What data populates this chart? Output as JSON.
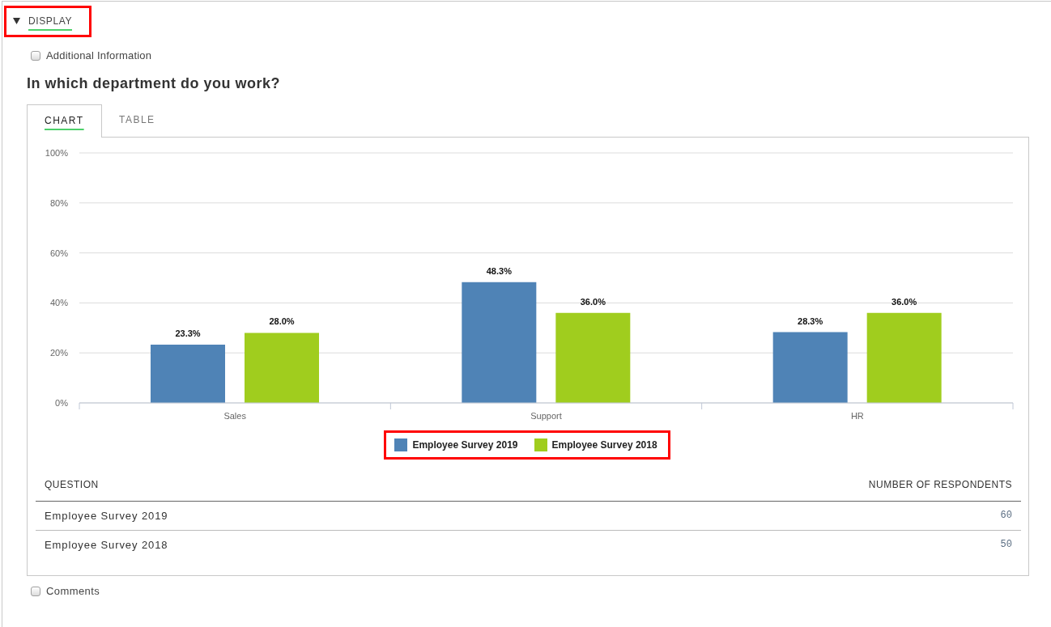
{
  "chart_data": {
    "type": "bar",
    "title": "In which department do you work?",
    "categories": [
      "Sales",
      "Support",
      "HR"
    ],
    "series": [
      {
        "name": "Employee Survey 2019",
        "color": "#4f83b6",
        "values": [
          23.3,
          48.3,
          28.3
        ],
        "value_labels": [
          "23.3%",
          "48.3%",
          "28.3%"
        ]
      },
      {
        "name": "Employee Survey 2018",
        "color": "#a0cd1e",
        "values": [
          28.0,
          36.0,
          36.0
        ],
        "value_labels": [
          "28.0%",
          "36.0%",
          "36.0%"
        ]
      }
    ],
    "ylim": [
      0,
      100
    ],
    "yticks": [
      {
        "value": 0,
        "label": "0%"
      },
      {
        "value": 20,
        "label": "20%"
      },
      {
        "value": 40,
        "label": "40%"
      },
      {
        "value": 60,
        "label": "60%"
      },
      {
        "value": 80,
        "label": "80%"
      },
      {
        "value": 100,
        "label": "100%"
      }
    ],
    "grid": "y",
    "legend": "bottom",
    "annotations": [
      "DISPLAY",
      "Additional Information",
      "CHART",
      "TABLE",
      "QUESTION",
      "NUMBER OF RESPONDENTS",
      "Employee Survey 2019",
      "60",
      "Employee Survey 2018",
      "50",
      "Comments"
    ]
  }
}
